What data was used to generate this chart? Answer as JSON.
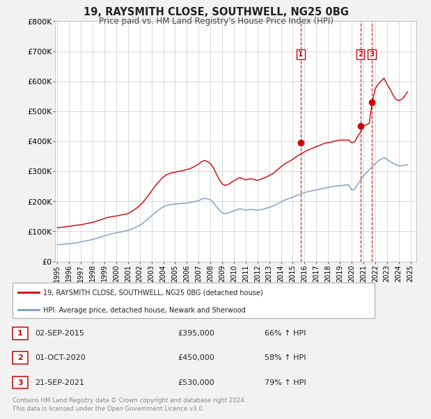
{
  "title": "19, RAYSMITH CLOSE, SOUTHWELL, NG25 0BG",
  "subtitle": "Price paid vs. HM Land Registry's House Price Index (HPI)",
  "background_color": "#f2f2f2",
  "plot_background": "#ffffff",
  "red_line_color": "#cc0000",
  "blue_line_color": "#7799cc",
  "grid_color": "#cccccc",
  "ylim": [
    0,
    800000
  ],
  "yticks": [
    0,
    100000,
    200000,
    300000,
    400000,
    500000,
    600000,
    700000,
    800000
  ],
  "ytick_labels": [
    "£0",
    "£100K",
    "£200K",
    "£300K",
    "£400K",
    "£500K",
    "£600K",
    "£700K",
    "£800K"
  ],
  "xlim_start": 1994.8,
  "xlim_end": 2025.5,
  "xticks": [
    1995,
    1996,
    1997,
    1998,
    1999,
    2000,
    2001,
    2002,
    2003,
    2004,
    2005,
    2006,
    2007,
    2008,
    2009,
    2010,
    2011,
    2012,
    2013,
    2014,
    2015,
    2016,
    2017,
    2018,
    2019,
    2020,
    2021,
    2022,
    2023,
    2024,
    2025
  ],
  "sale_dates": [
    2015.67,
    2020.75,
    2021.72
  ],
  "sale_prices": [
    395000,
    450000,
    530000
  ],
  "sale_labels": [
    "1",
    "2",
    "3"
  ],
  "legend_line1": "19, RAYSMITH CLOSE, SOUTHWELL, NG25 0BG (detached house)",
  "legend_line2": "HPI: Average price, detached house, Newark and Sherwood",
  "table_data": [
    [
      "1",
      "02-SEP-2015",
      "£395,000",
      "66% ↑ HPI"
    ],
    [
      "2",
      "01-OCT-2020",
      "£450,000",
      "58% ↑ HPI"
    ],
    [
      "3",
      "21-SEP-2021",
      "£530,000",
      "79% ↑ HPI"
    ]
  ],
  "footer": "Contains HM Land Registry data © Crown copyright and database right 2024.\nThis data is licensed under the Open Government Licence v3.0.",
  "hpi_x": [
    1995.0,
    1995.25,
    1995.5,
    1995.75,
    1996.0,
    1996.25,
    1996.5,
    1996.75,
    1997.0,
    1997.25,
    1997.5,
    1997.75,
    1998.0,
    1998.25,
    1998.5,
    1998.75,
    1999.0,
    1999.25,
    1999.5,
    1999.75,
    2000.0,
    2000.25,
    2000.5,
    2000.75,
    2001.0,
    2001.25,
    2001.5,
    2001.75,
    2002.0,
    2002.25,
    2002.5,
    2002.75,
    2003.0,
    2003.25,
    2003.5,
    2003.75,
    2004.0,
    2004.25,
    2004.5,
    2004.75,
    2005.0,
    2005.25,
    2005.5,
    2005.75,
    2006.0,
    2006.25,
    2006.5,
    2006.75,
    2007.0,
    2007.25,
    2007.5,
    2007.75,
    2008.0,
    2008.25,
    2008.5,
    2008.75,
    2009.0,
    2009.25,
    2009.5,
    2009.75,
    2010.0,
    2010.25,
    2010.5,
    2010.75,
    2011.0,
    2011.25,
    2011.5,
    2011.75,
    2012.0,
    2012.25,
    2012.5,
    2012.75,
    2013.0,
    2013.25,
    2013.5,
    2013.75,
    2014.0,
    2014.25,
    2014.5,
    2014.75,
    2015.0,
    2015.25,
    2015.5,
    2015.75,
    2016.0,
    2016.25,
    2016.5,
    2016.75,
    2017.0,
    2017.25,
    2017.5,
    2017.75,
    2018.0,
    2018.25,
    2018.5,
    2018.75,
    2019.0,
    2019.25,
    2019.5,
    2019.75,
    2020.0,
    2020.25,
    2020.5,
    2020.75,
    2021.0,
    2021.25,
    2021.5,
    2021.75,
    2022.0,
    2022.25,
    2022.5,
    2022.75,
    2023.0,
    2023.25,
    2023.5,
    2023.75,
    2024.0,
    2024.25,
    2024.5,
    2024.75
  ],
  "hpi_y": [
    55000,
    56000,
    57000,
    58000,
    59000,
    60000,
    61000,
    63000,
    65000,
    67000,
    69000,
    71000,
    73000,
    76000,
    79000,
    82000,
    85000,
    88000,
    91000,
    93000,
    95000,
    97000,
    99000,
    101000,
    103000,
    107000,
    111000,
    115000,
    120000,
    127000,
    135000,
    143000,
    152000,
    160000,
    168000,
    175000,
    182000,
    186000,
    188000,
    190000,
    191000,
    192000,
    193000,
    193000,
    194000,
    196000,
    198000,
    200000,
    202000,
    207000,
    210000,
    208000,
    205000,
    196000,
    183000,
    171000,
    162000,
    159000,
    161000,
    165000,
    168000,
    172000,
    175000,
    173000,
    170000,
    172000,
    173000,
    171000,
    170000,
    172000,
    174000,
    177000,
    180000,
    183000,
    188000,
    193000,
    198000,
    203000,
    207000,
    210000,
    214000,
    218000,
    222000,
    226000,
    229000,
    232000,
    234000,
    236000,
    238000,
    240000,
    242000,
    244000,
    246000,
    248000,
    250000,
    251000,
    252000,
    253000,
    254000,
    255000,
    238000,
    240000,
    255000,
    270000,
    285000,
    295000,
    305000,
    315000,
    325000,
    335000,
    340000,
    345000,
    340000,
    333000,
    327000,
    322000,
    318000,
    318000,
    320000,
    322000
  ],
  "red_x": [
    1995.0,
    1995.25,
    1995.5,
    1995.75,
    1996.0,
    1996.25,
    1996.5,
    1996.75,
    1997.0,
    1997.25,
    1997.5,
    1997.75,
    1998.0,
    1998.25,
    1998.5,
    1998.75,
    1999.0,
    1999.25,
    1999.5,
    1999.75,
    2000.0,
    2000.25,
    2000.5,
    2000.75,
    2001.0,
    2001.25,
    2001.5,
    2001.75,
    2002.0,
    2002.25,
    2002.5,
    2002.75,
    2003.0,
    2003.25,
    2003.5,
    2003.75,
    2004.0,
    2004.25,
    2004.5,
    2004.75,
    2005.0,
    2005.25,
    2005.5,
    2005.75,
    2006.0,
    2006.25,
    2006.5,
    2006.75,
    2007.0,
    2007.25,
    2007.5,
    2007.75,
    2008.0,
    2008.25,
    2008.5,
    2008.75,
    2009.0,
    2009.25,
    2009.5,
    2009.75,
    2010.0,
    2010.25,
    2010.5,
    2010.75,
    2011.0,
    2011.25,
    2011.5,
    2011.75,
    2012.0,
    2012.25,
    2012.5,
    2012.75,
    2013.0,
    2013.25,
    2013.5,
    2013.75,
    2014.0,
    2014.25,
    2014.5,
    2014.75,
    2015.0,
    2015.25,
    2015.5,
    2015.75,
    2016.0,
    2016.25,
    2016.5,
    2016.75,
    2017.0,
    2017.25,
    2017.5,
    2017.75,
    2018.0,
    2018.25,
    2018.5,
    2018.75,
    2019.0,
    2019.25,
    2019.5,
    2019.75,
    2020.0,
    2020.25,
    2020.5,
    2020.75,
    2021.0,
    2021.25,
    2021.5,
    2021.75,
    2022.0,
    2022.25,
    2022.5,
    2022.75,
    2023.0,
    2023.25,
    2023.5,
    2023.75,
    2024.0,
    2024.25,
    2024.5,
    2024.75
  ],
  "red_y": [
    112000,
    113000,
    114000,
    115000,
    117000,
    118000,
    120000,
    121000,
    122000,
    124000,
    126000,
    128000,
    130000,
    133000,
    136000,
    139000,
    143000,
    146000,
    148000,
    150000,
    151000,
    153000,
    155000,
    157000,
    159000,
    165000,
    171000,
    178000,
    186000,
    196000,
    208000,
    221000,
    234000,
    248000,
    260000,
    271000,
    281000,
    288000,
    292000,
    295000,
    297000,
    299000,
    301000,
    303000,
    306000,
    308000,
    313000,
    318000,
    324000,
    332000,
    336000,
    332000,
    326000,
    312000,
    292000,
    273000,
    258000,
    253000,
    256000,
    262000,
    268000,
    274000,
    279000,
    275000,
    271000,
    274000,
    275000,
    272000,
    270000,
    273000,
    277000,
    281000,
    286000,
    291000,
    298000,
    307000,
    315000,
    323000,
    329000,
    334000,
    340000,
    347000,
    354000,
    359000,
    365000,
    370000,
    374000,
    378000,
    382000,
    386000,
    390000,
    394000,
    395000,
    397000,
    400000,
    402000,
    404000,
    404000,
    404000,
    404000,
    395000,
    398000,
    415000,
    430000,
    450000,
    455000,
    460000,
    530000,
    575000,
    590000,
    600000,
    610000,
    590000,
    575000,
    555000,
    540000,
    535000,
    540000,
    550000,
    565000
  ]
}
